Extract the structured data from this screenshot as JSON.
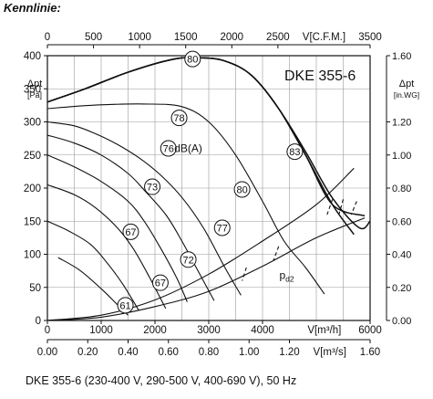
{
  "heading": "Kennlinie:",
  "caption": "DKE 355-6 (230-400 V, 290-500 V, 400-690 V), 50 Hz",
  "chart_data": {
    "type": "line",
    "title": "DKE 355-6",
    "xlabel": "V[m³/h]",
    "xlim": [
      0,
      6000
    ],
    "xticks": [
      0,
      1000,
      2000,
      3000,
      4000,
      6000
    ],
    "ylabel": "Δpt [Pa]",
    "ylim": [
      0,
      400
    ],
    "yticks": [
      0,
      50,
      100,
      150,
      200,
      250,
      300,
      350,
      400
    ],
    "top_axis": {
      "label": "V[C.F.M.]",
      "ticks": [
        "0",
        "500",
        "1000",
        "1500",
        "2000",
        "2500",
        "3500"
      ],
      "max": 3500
    },
    "bottom_axis": {
      "label": "V[m³/s]",
      "ticks": [
        "0.00",
        "0.20",
        "0.40",
        "0.60",
        "0.80",
        "1.00",
        "1.20",
        "1.60"
      ],
      "max": 1.6
    },
    "right_axis": {
      "label": "Δpt [in.WG]",
      "ticks": [
        "0.00",
        "0.20",
        "0.40",
        "0.60",
        "0.80",
        "1.00",
        "1.20",
        "1.60"
      ],
      "max": 1.6
    },
    "grid": true,
    "series": [
      {
        "kind": "fan",
        "x": [
          0,
          700,
          1500,
          2300,
          2800,
          3300,
          3800,
          4300,
          4800,
          5300,
          5700
        ],
        "y": [
          330,
          350,
          375,
          394,
          397,
          392,
          370,
          320,
          250,
          175,
          130
        ]
      },
      {
        "kind": "fan",
        "x": [
          0,
          700,
          1500,
          2300,
          2800,
          3300,
          3800,
          4300,
          4800,
          5300,
          5900
        ],
        "y": [
          330,
          350,
          375,
          394,
          397,
          392,
          370,
          320,
          250,
          175,
          158
        ]
      },
      {
        "kind": "fan",
        "x": [
          0,
          700,
          1500,
          2300,
          2800,
          3300,
          3800,
          4300,
          4800,
          5300,
          5800,
          6000
        ],
        "y": [
          330,
          350,
          375,
          394,
          397,
          392,
          370,
          320,
          255,
          185,
          140,
          150
        ]
      },
      {
        "kind": "efficiency",
        "x": [
          0,
          800,
          1800,
          2500,
          3000,
          3500,
          4000,
          4400,
          4800,
          5150
        ],
        "y": [
          320,
          325,
          327,
          323,
          300,
          250,
          180,
          120,
          80,
          40
        ]
      },
      {
        "kind": "efficiency",
        "x": [
          0,
          500,
          900,
          1300,
          1700,
          2100,
          2500,
          2900,
          3300,
          3600
        ],
        "y": [
          300,
          294,
          282,
          266,
          246,
          220,
          186,
          140,
          80,
          38
        ]
      },
      {
        "kind": "efficiency",
        "x": [
          0,
          500,
          1000,
          1500,
          1800,
          2200,
          2500,
          2800,
          3100
        ],
        "y": [
          280,
          268,
          250,
          222,
          197,
          160,
          120,
          75,
          30
        ]
      },
      {
        "kind": "efficiency",
        "x": [
          0,
          500,
          1000,
          1500,
          1800,
          2100,
          2400,
          2600
        ],
        "y": [
          250,
          232,
          210,
          180,
          150,
          110,
          65,
          28
        ]
      },
      {
        "kind": "efficiency",
        "x": [
          0,
          500,
          900,
          1300,
          1600,
          1900,
          2200
        ],
        "y": [
          205,
          190,
          170,
          140,
          108,
          65,
          18
        ]
      },
      {
        "kind": "efficiency",
        "x": [
          0,
          400,
          800,
          1100,
          1400,
          1700
        ],
        "y": [
          150,
          135,
          115,
          88,
          55,
          15
        ]
      },
      {
        "kind": "efficiency",
        "x": [
          200,
          600,
          1000,
          1300,
          1500
        ],
        "y": [
          95,
          76,
          48,
          24,
          8
        ]
      },
      {
        "kind": "system",
        "x": [
          0,
          1000,
          2000,
          3000,
          4000,
          5000,
          5900
        ],
        "y": [
          0,
          5,
          21,
          44,
          82,
          125,
          155
        ]
      },
      {
        "kind": "system",
        "x": [
          0,
          1000,
          2000,
          3000,
          4000,
          5000,
          5700
        ],
        "y": [
          0,
          8,
          31,
          70,
          120,
          175,
          230
        ]
      },
      {
        "kind": "dashed",
        "x": [
          3700,
          3620
        ],
        "y": [
          80,
          60
        ]
      },
      {
        "kind": "dashed",
        "x": [
          4300,
          4200
        ],
        "y": [
          112,
          90
        ]
      },
      {
        "kind": "dashed",
        "x": [
          5300,
          5200
        ],
        "y": [
          183,
          160
        ]
      },
      {
        "kind": "dashed",
        "x": [
          5500,
          5420
        ],
        "y": [
          183,
          160
        ]
      },
      {
        "kind": "dashed",
        "x": [
          5750,
          5650
        ],
        "y": [
          180,
          160
        ]
      }
    ],
    "annotations": [
      {
        "text": "80",
        "x": 2700,
        "y": 395
      },
      {
        "text": "78",
        "x": 2450,
        "y": 306
      },
      {
        "text": "76",
        "x": 2250,
        "y": 260
      },
      {
        "text": "dB(A)",
        "x": 2620,
        "y": 260,
        "plain": true
      },
      {
        "text": "83",
        "x": 4600,
        "y": 255
      },
      {
        "text": "73",
        "x": 1950,
        "y": 202
      },
      {
        "text": "80",
        "x": 3620,
        "y": 198
      },
      {
        "text": "77",
        "x": 3250,
        "y": 140
      },
      {
        "text": "67",
        "x": 1550,
        "y": 134
      },
      {
        "text": "72",
        "x": 2620,
        "y": 92
      },
      {
        "text": "67",
        "x": 2100,
        "y": 57
      },
      {
        "text": "61",
        "x": 1450,
        "y": 23
      },
      {
        "text": "p",
        "sub": "d2",
        "x": 4450,
        "y": 68,
        "plain": true
      }
    ]
  }
}
